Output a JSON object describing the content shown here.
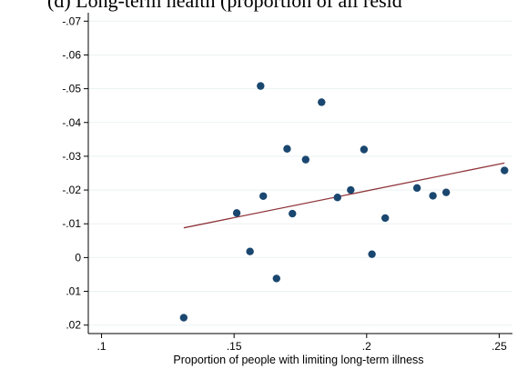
{
  "chart_data": {
    "type": "scatter",
    "title": "(d) Long-term health (proportion of all resid",
    "xlabel": "Proportion of people with limiting long-term illness",
    "ylabel": "",
    "xlim": [
      0.095,
      0.255
    ],
    "ylim": [
      -0.0725,
      0.0225
    ],
    "x_ticks": [
      {
        "value": 0.1,
        "label": ".1"
      },
      {
        "value": 0.15,
        "label": ".15"
      },
      {
        "value": 0.2,
        "label": ".2"
      },
      {
        "value": 0.25,
        "label": ".25"
      }
    ],
    "y_ticks": [
      {
        "value": -0.07,
        "label": "-.07"
      },
      {
        "value": -0.06,
        "label": "-.06"
      },
      {
        "value": -0.05,
        "label": "-.05"
      },
      {
        "value": -0.04,
        "label": "-.04"
      },
      {
        "value": -0.03,
        "label": "-.03"
      },
      {
        "value": -0.02,
        "label": "-.02"
      },
      {
        "value": -0.01,
        "label": "-.01"
      },
      {
        "value": 0,
        "label": "0"
      },
      {
        "value": 0.01,
        "label": ".01"
      },
      {
        "value": 0.02,
        "label": ".02"
      }
    ],
    "grid": true,
    "legend": "none",
    "points": [
      {
        "x": 0.131,
        "y": 0.0178
      },
      {
        "x": 0.151,
        "y": -0.0132
      },
      {
        "x": 0.156,
        "y": -0.0018
      },
      {
        "x": 0.16,
        "y": -0.0508
      },
      {
        "x": 0.161,
        "y": -0.0182
      },
      {
        "x": 0.166,
        "y": 0.0062
      },
      {
        "x": 0.17,
        "y": -0.0322
      },
      {
        "x": 0.172,
        "y": -0.013
      },
      {
        "x": 0.177,
        "y": -0.029
      },
      {
        "x": 0.183,
        "y": -0.046
      },
      {
        "x": 0.189,
        "y": -0.0178
      },
      {
        "x": 0.194,
        "y": -0.02
      },
      {
        "x": 0.199,
        "y": -0.032
      },
      {
        "x": 0.202,
        "y": -0.001
      },
      {
        "x": 0.207,
        "y": -0.0117
      },
      {
        "x": 0.219,
        "y": -0.0206
      },
      {
        "x": 0.225,
        "y": -0.0183
      },
      {
        "x": 0.23,
        "y": -0.0193
      },
      {
        "x": 0.252,
        "y": -0.0258
      }
    ],
    "fit_line": {
      "x": [
        0.131,
        0.252
      ],
      "y": [
        -0.0088,
        -0.028
      ]
    },
    "colors": {
      "point": "#1a476f",
      "fit_line": "#90353b",
      "grid": "#eaf2f3",
      "axis": "#000000"
    }
  }
}
